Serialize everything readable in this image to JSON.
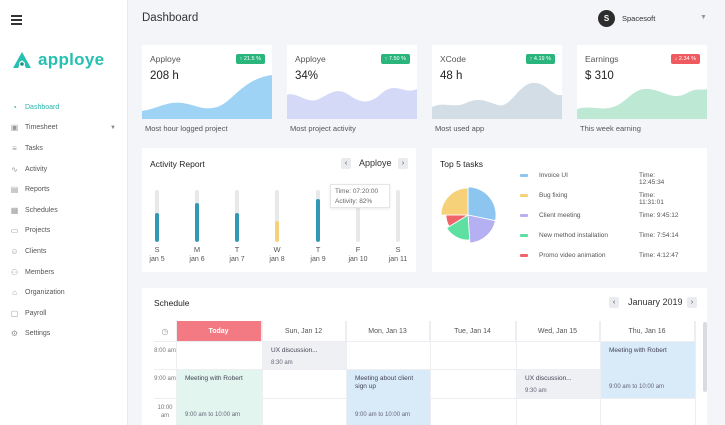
{
  "header": {
    "title": "Dashboard"
  },
  "user": {
    "initial": "S",
    "name": "Spacesoft",
    "menu_icon": "chevron-down-icon"
  },
  "brand": {
    "name": "apploye",
    "color": "#2bb5a8"
  },
  "sidebar": {
    "items": [
      {
        "label": "Dashboard",
        "icon": "dashboard-icon"
      },
      {
        "label": "Timesheet",
        "icon": "calendar-icon"
      },
      {
        "label": "Tasks",
        "icon": "list-icon"
      },
      {
        "label": "Activity",
        "icon": "activity-icon"
      },
      {
        "label": "Reports",
        "icon": "report-icon"
      },
      {
        "label": "Schedules",
        "icon": "schedule-icon"
      },
      {
        "label": "Projects",
        "icon": "folder-icon"
      },
      {
        "label": "Clients",
        "icon": "clients-icon"
      },
      {
        "label": "Members",
        "icon": "members-icon"
      },
      {
        "label": "Organization",
        "icon": "organization-icon"
      },
      {
        "label": "Payroll",
        "icon": "payroll-icon"
      },
      {
        "label": "Settings",
        "icon": "gear-icon"
      }
    ]
  },
  "stats": [
    {
      "title": "Apploye",
      "value": "208 h",
      "badge": "↑ 21.5 %",
      "badge_color": "#29b57c",
      "caption": "Most hour logged project",
      "wave_color": "#9ed3f5"
    },
    {
      "title": "Apploye",
      "value": "34%",
      "badge": "↑ 7.50 %",
      "badge_color": "#29b57c",
      "caption": "Most project activity",
      "wave_color": "#d3d9f6"
    },
    {
      "title": "XCode",
      "value": "48 h",
      "badge": "↑ 4.19 %",
      "badge_color": "#29b57c",
      "caption": "Most used app",
      "wave_color": "#d2dde5"
    },
    {
      "title": "Earnings",
      "value": "$ 310",
      "badge": "↓ 2.34 %",
      "badge_color": "#ef5a5f",
      "caption": "This week earning",
      "wave_color": "#bde8d3"
    }
  ],
  "activity": {
    "title": "Activity Report",
    "selected": "Apploye",
    "prev": "‹",
    "next": "›",
    "tooltip_time": "Time: 07:20:00",
    "tooltip_activity": "Activity: 82%",
    "days": [
      {
        "day": "S",
        "date": "jan 5",
        "value": 0.55,
        "color": "#3498b4"
      },
      {
        "day": "M",
        "date": "jan 6",
        "value": 0.75,
        "color": "#3498b4"
      },
      {
        "day": "T",
        "date": "jan 7",
        "value": 0.55,
        "color": "#3498b4"
      },
      {
        "day": "W",
        "date": "jan 8",
        "value": 0.4,
        "color": "#f7d07a"
      },
      {
        "day": "T",
        "date": "jan 9",
        "value": 0.82,
        "color": "#3498b4"
      },
      {
        "day": "F",
        "date": "jan 10",
        "value": 0,
        "color": "#3498b4"
      },
      {
        "day": "S",
        "date": "jan 11",
        "value": 0,
        "color": "#3498b4"
      }
    ]
  },
  "top_tasks": {
    "title": "Top 5 tasks",
    "items": [
      {
        "label": "Invoice UI",
        "time": "Time: 12:45:34",
        "color": "#8cc5f0",
        "share": 0.26
      },
      {
        "label": "Bug fixing",
        "time": "Time: 11:31:01",
        "color": "#f7d07a",
        "share": 0.23
      },
      {
        "label": "Client meeting",
        "time": "Time: 9:45:12",
        "color": "#b4b0f2",
        "share": 0.19
      },
      {
        "label": "New method installation",
        "time": "Time: 7:54:14",
        "color": "#5fe0a3",
        "share": 0.16
      },
      {
        "label": "Promo video animation",
        "time": "Time: 4:12:47",
        "color": "#ef6468",
        "share": 0.08
      }
    ]
  },
  "schedule": {
    "title": "Schedule",
    "month": "January 2019",
    "prev": "‹",
    "next": "›",
    "clock_icon": "clock-icon",
    "columns": [
      "Today",
      "Sun, Jan 12",
      "Mon, Jan 13",
      "Tue, Jan 14",
      "Wed, Jan 15",
      "Thu, Jan 16"
    ],
    "times": [
      "8:00 am",
      "9:00 am",
      "10:00 am"
    ],
    "events": [
      {
        "title": "UX discussion...",
        "time": "8:30 am",
        "color": "#eef0f3"
      },
      {
        "title": "Meeting with Robert",
        "time": "9:00 am to 10:00 am",
        "color": "#d9eaf9"
      },
      {
        "title": "Meeting with Robert",
        "time": "9:00 am to 10:00 am",
        "color": "#e2f5ef"
      },
      {
        "title": "Meeting about client sign up",
        "time": "9:00 am to 10:00 am",
        "color": "#d9eaf9"
      },
      {
        "title": "UX discussion...",
        "time": "9:30 am",
        "color": "#eef0f3"
      }
    ]
  }
}
